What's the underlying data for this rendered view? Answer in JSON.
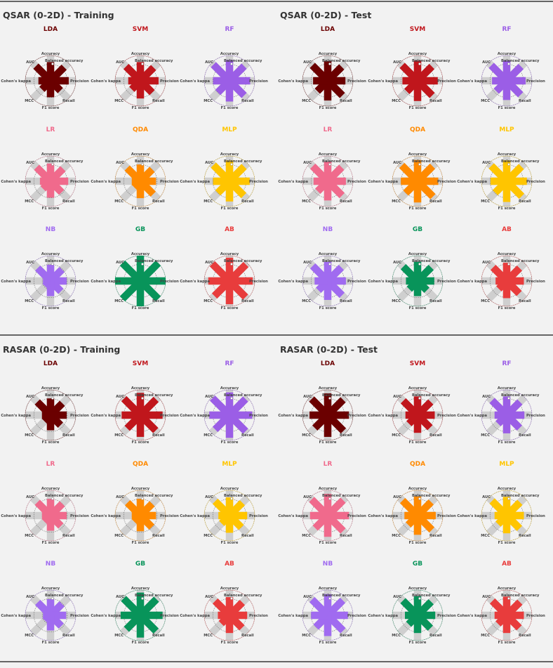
{
  "colors": {
    "LDA": "#6b0000",
    "SVM": "#c0161c",
    "RF": "#9b5ee6",
    "LR": "#f06a8c",
    "QDA": "#ff8a00",
    "MLP": "#ffc500",
    "NB": "#a06bf0",
    "GB": "#08945a",
    "AB": "#e83c3c"
  },
  "metric_labels": [
    "Accuracy",
    "Balanced accuracy",
    "Precision",
    "Recall",
    "F1 score",
    "MCC",
    "Cohen's kappa",
    "AUC"
  ],
  "panels": [
    {
      "title": "QSAR (0-2D) - Training",
      "chart_data": [
        {
          "type": "polar-bar",
          "model": "LDA",
          "values": [
            0.74,
            0.76,
            0.72,
            0.55,
            0.65,
            0.48,
            0.48,
            0.82
          ]
        },
        {
          "type": "polar-bar",
          "model": "SVM",
          "values": [
            0.74,
            0.74,
            0.72,
            0.66,
            0.7,
            0.48,
            0.48,
            0.8
          ]
        },
        {
          "type": "polar-bar",
          "model": "RF",
          "values": [
            0.82,
            0.82,
            0.82,
            0.82,
            0.82,
            0.65,
            0.65,
            0.9
          ]
        },
        {
          "type": "polar-bar",
          "model": "LR",
          "values": [
            0.7,
            0.7,
            0.7,
            0.62,
            0.65,
            0.42,
            0.42,
            0.78
          ]
        },
        {
          "type": "polar-bar",
          "model": "QDA",
          "values": [
            0.66,
            0.66,
            0.62,
            0.72,
            0.67,
            0.34,
            0.34,
            0.74
          ]
        },
        {
          "type": "polar-bar",
          "model": "MLP",
          "values": [
            0.82,
            0.82,
            0.8,
            0.8,
            0.8,
            0.65,
            0.65,
            0.9
          ]
        },
        {
          "type": "polar-bar",
          "model": "NB",
          "values": [
            0.64,
            0.64,
            0.64,
            0.58,
            0.6,
            0.3,
            0.3,
            0.72
          ]
        },
        {
          "type": "polar-bar",
          "model": "GB",
          "values": [
            1.0,
            1.0,
            1.0,
            1.0,
            1.0,
            1.0,
            1.0,
            1.0
          ]
        },
        {
          "type": "polar-bar",
          "model": "AB",
          "values": [
            0.92,
            0.92,
            0.92,
            0.9,
            0.92,
            0.84,
            0.84,
            0.96
          ]
        }
      ]
    },
    {
      "title": "QSAR (0-2D) - Test",
      "chart_data": [
        {
          "type": "polar-bar",
          "model": "LDA",
          "values": [
            0.78,
            0.78,
            0.7,
            0.82,
            0.78,
            0.58,
            0.58,
            0.86
          ]
        },
        {
          "type": "polar-bar",
          "model": "SVM",
          "values": [
            0.8,
            0.8,
            0.8,
            0.82,
            0.8,
            0.6,
            0.6,
            0.86
          ]
        },
        {
          "type": "polar-bar",
          "model": "RF",
          "values": [
            0.8,
            0.8,
            0.75,
            0.78,
            0.76,
            0.58,
            0.58,
            0.86
          ]
        },
        {
          "type": "polar-bar",
          "model": "LR",
          "values": [
            0.78,
            0.78,
            0.72,
            0.8,
            0.76,
            0.56,
            0.56,
            0.84
          ]
        },
        {
          "type": "polar-bar",
          "model": "QDA",
          "values": [
            0.84,
            0.84,
            0.82,
            0.86,
            0.84,
            0.66,
            0.66,
            0.88
          ]
        },
        {
          "type": "polar-bar",
          "model": "MLP",
          "values": [
            0.82,
            0.82,
            0.8,
            0.84,
            0.82,
            0.64,
            0.64,
            0.86
          ]
        },
        {
          "type": "polar-bar",
          "model": "NB",
          "values": [
            0.76,
            0.76,
            0.72,
            0.8,
            0.75,
            0.52,
            0.52,
            0.84
          ]
        },
        {
          "type": "polar-bar",
          "model": "GB",
          "values": [
            0.76,
            0.76,
            0.66,
            0.52,
            0.6,
            0.46,
            0.46,
            0.8
          ]
        },
        {
          "type": "polar-bar",
          "model": "AB",
          "values": [
            0.72,
            0.72,
            0.68,
            0.7,
            0.68,
            0.44,
            0.44,
            0.76
          ]
        }
      ]
    },
    {
      "title": "RASAR (0-2D) - Training",
      "chart_data": [
        {
          "type": "polar-bar",
          "model": "LDA",
          "values": [
            0.66,
            0.66,
            0.64,
            0.56,
            0.6,
            0.34,
            0.34,
            0.74
          ]
        },
        {
          "type": "polar-bar",
          "model": "SVM",
          "values": [
            0.88,
            0.88,
            0.88,
            0.86,
            0.86,
            0.74,
            0.74,
            0.92
          ]
        },
        {
          "type": "polar-bar",
          "model": "RF",
          "values": [
            0.9,
            0.9,
            0.9,
            0.9,
            0.9,
            0.8,
            0.8,
            0.95
          ]
        },
        {
          "type": "polar-bar",
          "model": "LR",
          "values": [
            0.66,
            0.66,
            0.64,
            0.58,
            0.6,
            0.34,
            0.34,
            0.74
          ]
        },
        {
          "type": "polar-bar",
          "model": "QDA",
          "values": [
            0.66,
            0.66,
            0.62,
            0.64,
            0.62,
            0.34,
            0.34,
            0.72
          ]
        },
        {
          "type": "polar-bar",
          "model": "MLP",
          "values": [
            0.72,
            0.72,
            0.7,
            0.66,
            0.68,
            0.44,
            0.44,
            0.8
          ]
        },
        {
          "type": "polar-bar",
          "model": "NB",
          "values": [
            0.64,
            0.64,
            0.62,
            0.6,
            0.6,
            0.3,
            0.3,
            0.72
          ]
        },
        {
          "type": "polar-bar",
          "model": "GB",
          "values": [
            0.9,
            0.9,
            0.88,
            0.88,
            0.88,
            0.78,
            0.78,
            0.94
          ]
        },
        {
          "type": "polar-bar",
          "model": "AB",
          "values": [
            0.72,
            0.72,
            0.7,
            0.7,
            0.7,
            0.46,
            0.46,
            0.8
          ]
        }
      ]
    },
    {
      "title": "RASAR (0-2D) - Test",
      "chart_data": [
        {
          "type": "polar-bar",
          "model": "LDA",
          "values": [
            0.86,
            0.86,
            0.84,
            0.88,
            0.86,
            0.72,
            0.72,
            0.9
          ]
        },
        {
          "type": "polar-bar",
          "model": "SVM",
          "values": [
            0.74,
            0.74,
            0.68,
            0.7,
            0.7,
            0.48,
            0.48,
            0.8
          ]
        },
        {
          "type": "polar-bar",
          "model": "RF",
          "values": [
            0.74,
            0.74,
            0.7,
            0.72,
            0.72,
            0.48,
            0.48,
            0.82
          ]
        },
        {
          "type": "polar-bar",
          "model": "LR",
          "values": [
            0.86,
            0.86,
            0.84,
            0.86,
            0.84,
            0.7,
            0.7,
            0.9
          ]
        },
        {
          "type": "polar-bar",
          "model": "QDA",
          "values": [
            0.76,
            0.76,
            0.72,
            0.8,
            0.76,
            0.52,
            0.52,
            0.84
          ]
        },
        {
          "type": "polar-bar",
          "model": "MLP",
          "values": [
            0.74,
            0.74,
            0.68,
            0.72,
            0.7,
            0.48,
            0.48,
            0.82
          ]
        },
        {
          "type": "polar-bar",
          "model": "NB",
          "values": [
            0.84,
            0.84,
            0.8,
            0.86,
            0.82,
            0.66,
            0.66,
            0.88
          ]
        },
        {
          "type": "polar-bar",
          "model": "GB",
          "values": [
            0.76,
            0.76,
            0.7,
            0.72,
            0.7,
            0.5,
            0.5,
            0.82
          ]
        },
        {
          "type": "polar-bar",
          "model": "AB",
          "values": [
            0.74,
            0.74,
            0.68,
            0.7,
            0.7,
            0.48,
            0.48,
            0.8
          ]
        }
      ]
    }
  ]
}
